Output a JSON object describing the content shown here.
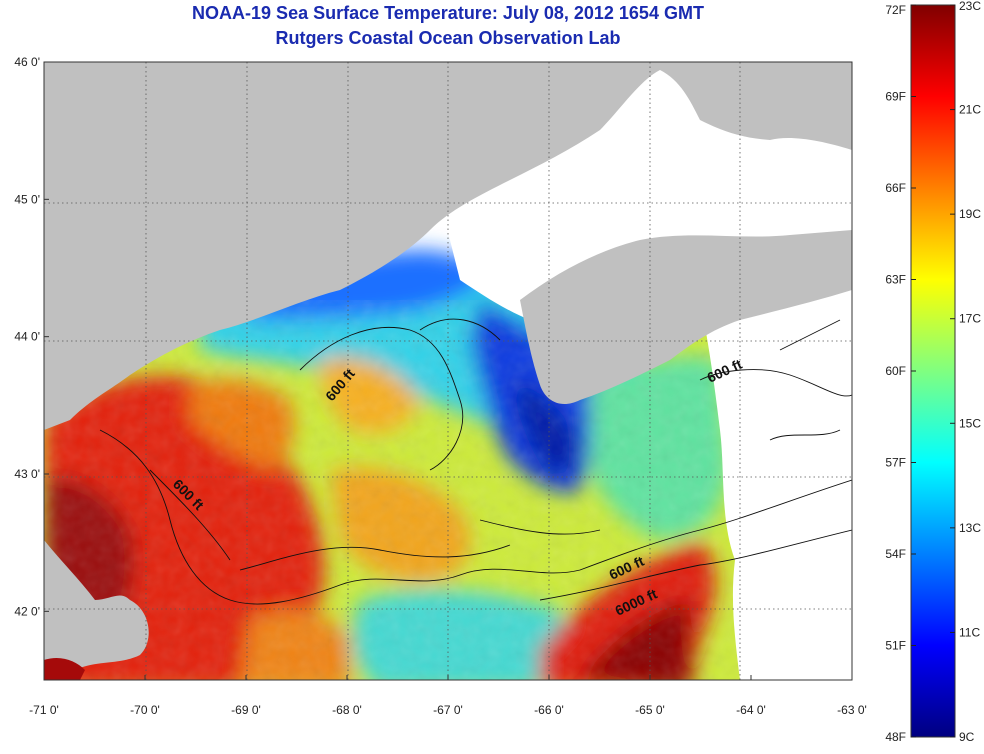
{
  "title_line1": "NOAA-19 Sea Surface Temperature:  July 08, 2012 1654 GMT",
  "title_line2": "Rutgers Coastal Ocean Observation Lab",
  "map": {
    "lon_range": [
      -71,
      -63
    ],
    "lat_range": [
      41.5,
      46
    ],
    "lon_ticks": [
      "-71 0'",
      "-70 0'",
      "-69 0'",
      "-68 0'",
      "-67 0'",
      "-66 0'",
      "-65 0'",
      "-64 0'",
      "-63 0'"
    ],
    "lat_ticks": [
      "46 0'",
      "45 0'",
      "44 0'",
      "43 0'",
      "42 0'"
    ],
    "grid": "dotted",
    "land_color": "#c0c0c0",
    "cloud_color": "#ffffff",
    "contour_labels": [
      "600 ft",
      "600 ft",
      "600 ft",
      "600 ft",
      "6000 ft"
    ]
  },
  "colorbar": {
    "fahrenheit_labels": [
      "72F",
      "69F",
      "66F",
      "63F",
      "60F",
      "57F",
      "54F",
      "51F",
      "48F"
    ],
    "celsius_labels": [
      "23C",
      "21C",
      "19C",
      "17C",
      "15C",
      "13C",
      "11C",
      "9C"
    ],
    "fahrenheit_range": [
      48,
      72
    ],
    "celsius_range": [
      9,
      23
    ],
    "colors_bottom_to_top": [
      "#000080",
      "#0000ff",
      "#0080ff",
      "#00ffff",
      "#80ff80",
      "#ffff00",
      "#ff8000",
      "#ff0000",
      "#800000"
    ]
  }
}
